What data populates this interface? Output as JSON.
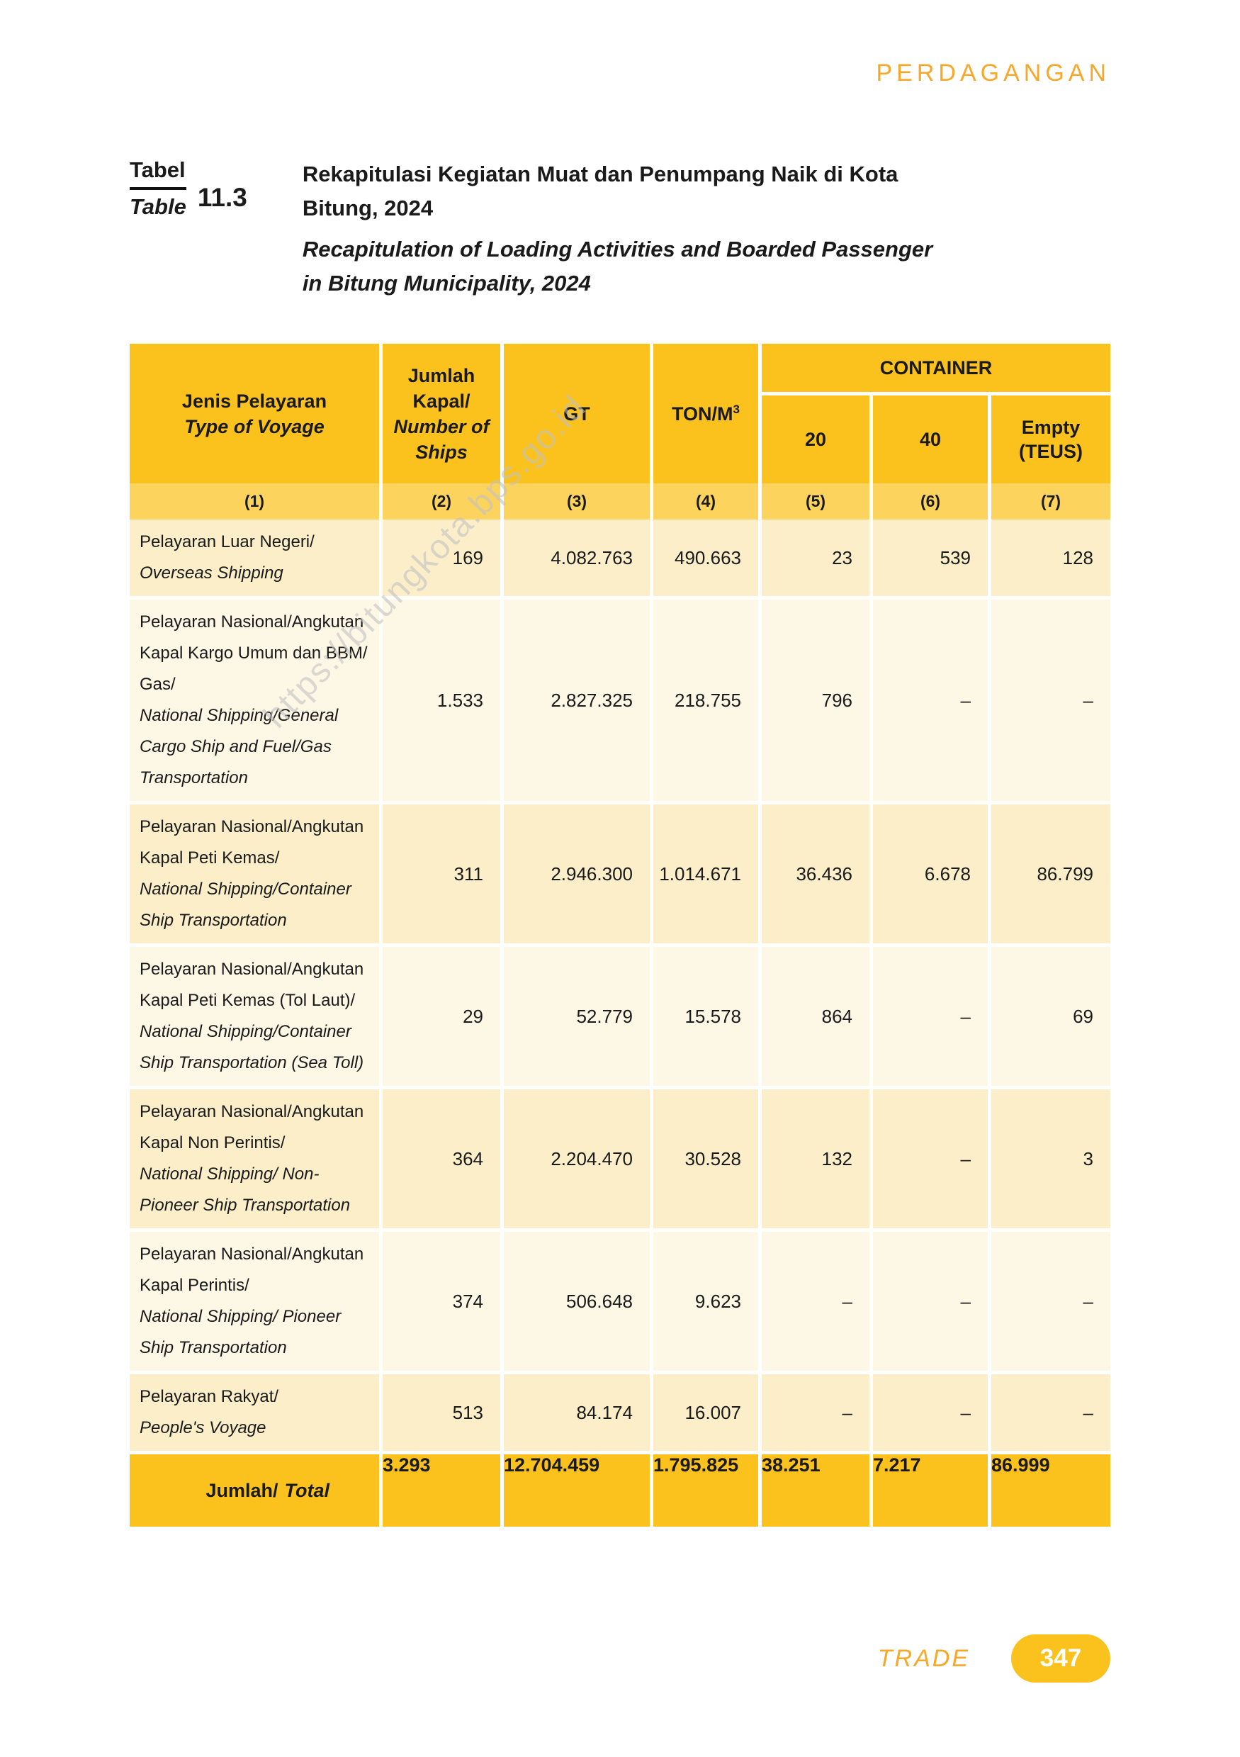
{
  "header": {
    "section_label": "PERDAGANGAN"
  },
  "title_block": {
    "label_id": "Tabel",
    "label_en": "Table",
    "number": "11.3",
    "line1": "Rekapitulasi Kegiatan Muat dan Penumpang Naik di Kota",
    "line2": "Bitung, 2024",
    "line3": "Recapitulation of Loading Activities and Boarded Passenger",
    "line4": "in Bitung Municipality, 2024"
  },
  "watermark": "https://bitungkota.bps.go.id",
  "table": {
    "header": {
      "col1_id": "Jenis Pelayaran",
      "col1_en": "Type of Voyage",
      "col2_id": "Jumlah Kapal/",
      "col2_en": "Number of Ships",
      "col3": "GT",
      "col4_base": "TON/M",
      "col4_sup": "3",
      "container_label": "CONTAINER",
      "col5": "20",
      "col6": "40",
      "col7": "Empty (TEUS)",
      "numbers": [
        "(1)",
        "(2)",
        "(3)",
        "(4)",
        "(5)",
        "(6)",
        "(7)"
      ]
    },
    "rows": [
      {
        "label_id": "Pelayaran Luar Negeri/",
        "label_en": "Overseas Shipping",
        "values": [
          "169",
          "4.082.763",
          "490.663",
          "23",
          "539",
          "128"
        ]
      },
      {
        "label_id": "Pelayaran Nasional/Angkutan Kapal Kargo Umum dan BBM/ Gas/",
        "label_en": "National Shipping/General Cargo Ship and Fuel/Gas Transportation",
        "values": [
          "1.533",
          "2.827.325",
          "218.755",
          "796",
          "–",
          "–"
        ]
      },
      {
        "label_id": "Pelayaran Nasional/Angkutan Kapal Peti Kemas/",
        "label_en": "National Shipping/Container Ship Transportation",
        "values": [
          "311",
          "2.946.300",
          "1.014.671",
          "36.436",
          "6.678",
          "86.799"
        ]
      },
      {
        "label_id": "Pelayaran Nasional/Angkutan Kapal Peti Kemas (Tol Laut)/",
        "label_en": "National Shipping/Container Ship Transportation (Sea Toll)",
        "values": [
          "29",
          "52.779",
          "15.578",
          "864",
          "–",
          "69"
        ]
      },
      {
        "label_id": "Pelayaran Nasional/Angkutan Kapal Non Perintis/",
        "label_en": "National Shipping/ Non-Pioneer Ship Transportation",
        "values": [
          "364",
          "2.204.470",
          "30.528",
          "132",
          "–",
          "3"
        ]
      },
      {
        "label_id": "Pelayaran Nasional/Angkutan Kapal Perintis/",
        "label_en": "National Shipping/ Pioneer Ship Transportation",
        "values": [
          "374",
          "506.648",
          "9.623",
          "–",
          "–",
          "–"
        ]
      },
      {
        "label_id": "Pelayaran Rakyat/",
        "label_en": "People's Voyage",
        "values": [
          "513",
          "84.174",
          "16.007",
          "–",
          "–",
          "–"
        ]
      }
    ],
    "total": {
      "label_id": "Jumlah/",
      "label_en": "Total",
      "values": [
        "3.293",
        "12.704.459",
        "1.795.825",
        "38.251",
        "7.217",
        "86.999"
      ]
    }
  },
  "footer": {
    "section_label": "TRADE",
    "page_number": "347"
  },
  "colors": {
    "gold": "#fbc21e",
    "gold_light": "#fcd35c",
    "cream_dark": "#fbeec9",
    "cream_light": "#fdf7e6",
    "orange": "#f7a82b"
  }
}
